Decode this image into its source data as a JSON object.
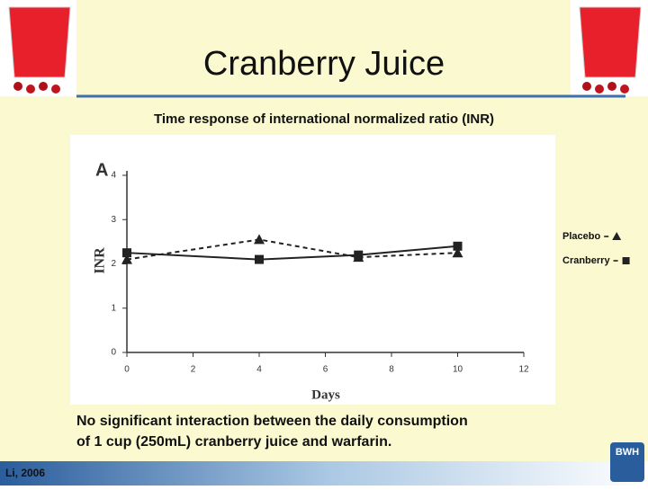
{
  "header": {
    "title": "Cranberry Juice"
  },
  "chart_data": {
    "type": "line",
    "title": "Time response of international normalized ratio (INR)",
    "panel_label": "A",
    "x_label": "Days",
    "y_label": "INR",
    "x": [
      0,
      4,
      7,
      10
    ],
    "series": [
      {
        "name": "Placebo",
        "color": "#222222",
        "marker": "triangle",
        "dashed": true,
        "values": [
          2.1,
          2.55,
          2.15,
          2.25
        ]
      },
      {
        "name": "Cranberry",
        "color": "#222222",
        "marker": "square",
        "dashed": false,
        "values": [
          2.25,
          2.1,
          2.2,
          2.4
        ]
      }
    ],
    "xlim": [
      0,
      12
    ],
    "ylim": [
      0,
      4
    ],
    "xticks": [
      0,
      2,
      4,
      6,
      8,
      10,
      12
    ],
    "yticks": [
      0,
      1,
      2,
      3,
      4
    ]
  },
  "footer": {
    "note_lines": [
      "No significant interaction between the daily consumption",
      "of 1 cup (250mL) cranberry juice and warfarin."
    ],
    "citation": "Li, 2006",
    "logo": "BWH"
  }
}
